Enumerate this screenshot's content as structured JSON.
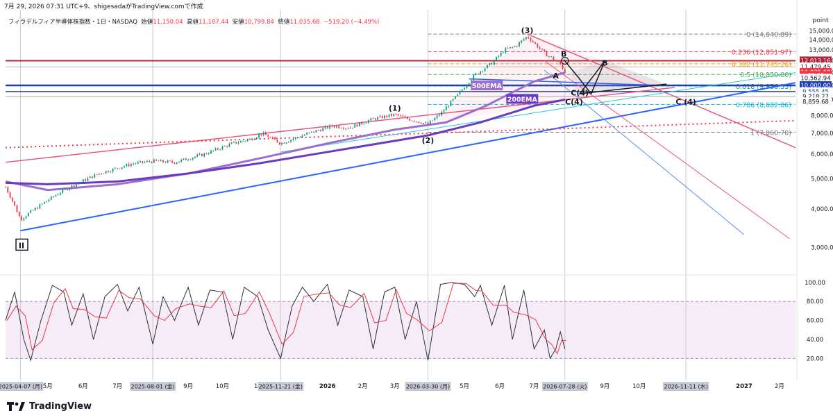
{
  "header": {
    "timestamp_line": "7月 29, 2026 07:31 UTC+9、shigesadaがTradingView.comで作成",
    "symbol": "フィラデルフィア半導体株指数・1日・NASDAQ",
    "open_label": "始値",
    "open": "11,150.04",
    "high_label": "高値",
    "high": "11,187.44",
    "low_label": "安値",
    "low": "10,799.84",
    "close_label": "終値",
    "close": "11,035.68",
    "change": "−519.20 (−4.49%)"
  },
  "brand": "TradingView",
  "colors": {
    "up": "#089981",
    "down": "#f23645",
    "ema500": "#9c6fcf",
    "ema200": "#6a3bc2",
    "trend_blue": "#2962ff",
    "pink": "#e8577f",
    "fib_dash": "#f23645",
    "teal": "#26c6da"
  },
  "chart_data": [
    {
      "type": "candlestick",
      "title": "",
      "y_axis_label": "point",
      "ylim": [
        2500,
        15500
      ],
      "y_scale": "log",
      "yticks": [
        "15,000.00",
        "14,000.00",
        "13,000.00",
        "12,000.00",
        "11,000.00",
        "10,000.00",
        "9,000.00",
        "8,000.00",
        "7,000.00",
        "6,000.00",
        "5,000.00",
        "4,000.00",
        "3,000.00"
      ],
      "x_tick_labels": [
        {
          "label": "5月",
          "date": "2025-05-01"
        },
        {
          "label": "6月",
          "date": "2025-06-01"
        },
        {
          "label": "7月",
          "date": "2025-07-01"
        },
        {
          "label": "9月",
          "date": "2025-09-01"
        },
        {
          "label": "10月",
          "date": "2025-10-01"
        },
        {
          "label": "11",
          "date": "2025-11-01"
        },
        {
          "label": "2026",
          "date": "2026-01-01"
        },
        {
          "label": "2月",
          "date": "2026-02-01"
        },
        {
          "label": "3月",
          "date": "2026-03-01"
        },
        {
          "label": "5月",
          "date": "2026-05-01"
        },
        {
          "label": "6月",
          "date": "2026-06-01"
        },
        {
          "label": "7月",
          "date": "2026-07-01"
        },
        {
          "label": "9月",
          "date": "2026-09-01"
        },
        {
          "label": "10月",
          "date": "2026-10-01"
        },
        {
          "label": "2027",
          "date": "2027-01-01"
        },
        {
          "label": "2月",
          "date": "2027-02-01"
        }
      ],
      "date_markers": [
        {
          "label": "2025-04-07 (月)",
          "date": "2025-04-07"
        },
        {
          "label": "2025-08-01 (金)",
          "date": "2025-08-01"
        },
        {
          "label": "2025-11-21 (金)",
          "date": "2025-11-21"
        },
        {
          "label": "2026-03-30 (月)",
          "date": "2026-03-30"
        },
        {
          "label": "2026-07-28 (火)",
          "date": "2026-07-28"
        },
        {
          "label": "2026-11-11 (水)",
          "date": "2026-11-11"
        }
      ],
      "price_path": [
        [
          "2025-03-25",
          4700
        ],
        [
          "2025-04-07",
          3700
        ],
        [
          "2025-04-20",
          4000
        ],
        [
          "2025-05-15",
          4600
        ],
        [
          "2025-06-15",
          5200
        ],
        [
          "2025-07-15",
          5600
        ],
        [
          "2025-08-01",
          5700
        ],
        [
          "2025-08-20",
          5650
        ],
        [
          "2025-09-15",
          6000
        ],
        [
          "2025-10-10",
          6500
        ],
        [
          "2025-10-25",
          6700
        ],
        [
          "2025-11-05",
          7000
        ],
        [
          "2025-11-21",
          6500
        ],
        [
          "2025-12-10",
          6900
        ],
        [
          "2026-01-05",
          7400
        ],
        [
          "2026-01-20",
          7300
        ],
        [
          "2026-02-10",
          7800
        ],
        [
          "2026-03-01",
          8050
        ],
        [
          "2026-03-15",
          7750
        ],
        [
          "2026-03-30",
          7500
        ],
        [
          "2026-04-10",
          8100
        ],
        [
          "2026-04-25",
          9300
        ],
        [
          "2026-05-10",
          10800
        ],
        [
          "2026-05-25",
          11800
        ],
        [
          "2026-06-05",
          13000
        ],
        [
          "2026-06-15",
          13400
        ],
        [
          "2026-06-25",
          14400
        ],
        [
          "2026-07-01",
          13700
        ],
        [
          "2026-07-10",
          12700
        ],
        [
          "2026-07-20",
          12000
        ],
        [
          "2026-07-24",
          11700
        ],
        [
          "2026-07-28",
          11035.68
        ]
      ],
      "ema500_path": [
        [
          "2025-03-25",
          4900
        ],
        [
          "2025-05-01",
          4600
        ],
        [
          "2025-07-01",
          4800
        ],
        [
          "2025-09-01",
          5200
        ],
        [
          "2025-11-01",
          5800
        ],
        [
          "2026-01-01",
          6500
        ],
        [
          "2026-03-01",
          7200
        ],
        [
          "2026-04-15",
          7600
        ],
        [
          "2026-05-20",
          8600
        ],
        [
          "2026-07-01",
          10300
        ],
        [
          "2026-07-28",
          11000
        ]
      ],
      "ema200_path": [
        [
          "2025-03-25",
          4850
        ],
        [
          "2025-05-01",
          4800
        ],
        [
          "2025-07-01",
          4900
        ],
        [
          "2025-09-01",
          5200
        ],
        [
          "2025-11-01",
          5600
        ],
        [
          "2026-01-01",
          6100
        ],
        [
          "2026-03-30",
          6900
        ],
        [
          "2026-05-15",
          7600
        ],
        [
          "2026-07-01",
          8600
        ],
        [
          "2026-07-28",
          9000
        ]
      ],
      "fib_levels": [
        {
          "ratio": "0",
          "price": 14640.89,
          "label": "0 (14,640.89)",
          "color": "#787b86"
        },
        {
          "ratio": "0.236",
          "price": 12851.97,
          "label": "0.236 (12,851.97)",
          "color": "#f23645"
        },
        {
          "ratio": "0.382",
          "price": 11745.26,
          "label": "0.382 (11,745.26)",
          "color": "#ff9800"
        },
        {
          "ratio": "0.5",
          "price": 10850.8,
          "label": "0.5 (10,850.80)",
          "color": "#4caf50"
        },
        {
          "ratio": "0.618",
          "price": 9956.33,
          "label": "0.618 (9,956.33)",
          "color": "#089981"
        },
        {
          "ratio": "0.786",
          "price": 8682.86,
          "label": "0.786 (8,682.86)",
          "color": "#00bcd4"
        },
        {
          "ratio": "1",
          "price": 7060.7,
          "label": "1 (7,060.70)",
          "color": "#787b86"
        }
      ],
      "price_badges": [
        {
          "text": "12,112.45",
          "bg": "#ffffff",
          "fg": "#131722",
          "price": 12112.45
        },
        {
          "text": "12,013.16",
          "bg": "#b2233b",
          "fg": "#ffffff",
          "price": 12013.16
        },
        {
          "text": "11,479.45",
          "bg": "#ffffff",
          "fg": "#131722",
          "price": 11479.45
        },
        {
          "text": "11,045.74",
          "bg": "#ffffff",
          "fg": "#131722",
          "price": 11045.74
        },
        {
          "text": "11,035.68",
          "bg": "#f23645",
          "fg": "#ffffff",
          "price": 11035.68
        },
        {
          "text": "43:49",
          "bg": "#f23645",
          "fg": "#ffffff",
          "price": 10770
        },
        {
          "text": "10,562.94",
          "bg": "#ffffff",
          "fg": "#131722",
          "price": 10562.94
        },
        {
          "text": "10,000.00",
          "bg": "#1e40af",
          "fg": "#ffffff",
          "price": 10000
        },
        {
          "text": "9,555.45",
          "bg": "#ffffff",
          "fg": "#1e40af",
          "price": 9555.45
        },
        {
          "text": "9,218.27",
          "bg": "#ffffff",
          "fg": "#131722",
          "price": 9218.27
        },
        {
          "text": "8,859.68",
          "bg": "#ffffff",
          "fg": "#131722",
          "price": 8859.68
        }
      ],
      "wave_labels": [
        {
          "text": "II",
          "date": "2025-04-08",
          "price": 3050,
          "boxed": true
        },
        {
          "text": "(1)",
          "date": "2026-03-01",
          "price": 8450
        },
        {
          "text": "(2)",
          "date": "2026-03-30",
          "price": 6650
        },
        {
          "text": "(3)",
          "date": "2026-06-25",
          "price": 15050
        },
        {
          "text": "B",
          "date": "2026-07-27",
          "price": 12650
        },
        {
          "text": "A",
          "date": "2026-07-20",
          "price": 10750
        },
        {
          "text": "C(4)",
          "date": "2026-08-10",
          "price": 9480
        },
        {
          "text": "B",
          "date": "2026-09-01",
          "price": 11820
        },
        {
          "text": "C(4)",
          "date": "2026-08-05",
          "price": 8850
        },
        {
          "text": "C (4)",
          "date": "2026-11-11",
          "price": 8850
        }
      ],
      "ema_labels": [
        {
          "text": "500EMA",
          "date": "2026-05-20",
          "price": 10000,
          "bg": "#9c6fcf"
        },
        {
          "text": "200EMA",
          "date": "2026-06-20",
          "price": 9050,
          "bg": "#6a3bc2"
        }
      ],
      "horizontal_lines": [
        {
          "price": 12013.16,
          "color": "#b2233b",
          "width": 2
        },
        {
          "price": 10000,
          "color": "#1e40af",
          "width": 2.5
        },
        {
          "price": 9555.45,
          "color": "#1e40af",
          "width": 1.5
        },
        {
          "price": 11479.45,
          "color": "#9e9e9e",
          "width": 0.8
        },
        {
          "price": 9218.27,
          "color": "#9e9e9e",
          "width": 0.8
        }
      ],
      "trendlines": [
        {
          "from": [
            "2025-04-07",
            3400
          ],
          "to": [
            "2027-02-15",
            10200
          ],
          "color": "#2962ff",
          "width": 2
        },
        {
          "from": [
            "2025-03-25",
            5650
          ],
          "to": [
            "2026-11-01",
            9850
          ],
          "color": "#e8577f",
          "width": 1.5
        },
        {
          "from": [
            "2025-03-25",
            6300
          ],
          "to": [
            "2027-02-15",
            7700
          ],
          "color": "#f23645",
          "width": 2,
          "dotted": true
        },
        {
          "from": [
            "2025-11-21",
            6100
          ],
          "to": [
            "2027-02-15",
            11000
          ],
          "color": "#26c6da",
          "width": 1
        },
        {
          "from": [
            "2026-06-25",
            14640
          ],
          "to": [
            "2027-02-15",
            6300
          ],
          "color": "#e8577f",
          "width": 1.5
        },
        {
          "from": [
            "2026-07-10",
            12013
          ],
          "to": [
            "2027-02-10",
            3200
          ],
          "color": "#e8577f",
          "width": 1
        },
        {
          "from": [
            "2026-07-10",
            11200
          ],
          "to": [
            "2027-01-01",
            3300
          ],
          "color": "#5b8def",
          "width": 1
        },
        {
          "from": [
            "2026-05-05",
            10500
          ],
          "to": [
            "2026-10-20",
            10000
          ],
          "color": "#2962ff",
          "width": 1.5
        }
      ]
    },
    {
      "type": "line",
      "title": "",
      "name": "stochastic",
      "ylim": [
        10,
        105
      ],
      "yticks": [
        "100.00",
        "80.00",
        "60.00",
        "40.00",
        "20.00"
      ],
      "band": [
        20,
        80
      ],
      "k_path": [
        [
          "2025-03-25",
          60
        ],
        [
          "2025-04-02",
          90
        ],
        [
          "2025-04-10",
          40
        ],
        [
          "2025-04-16",
          18
        ],
        [
          "2025-04-25",
          60
        ],
        [
          "2025-05-05",
          97
        ],
        [
          "2025-05-15",
          90
        ],
        [
          "2025-05-22",
          55
        ],
        [
          "2025-06-01",
          88
        ],
        [
          "2025-06-10",
          40
        ],
        [
          "2025-06-20",
          85
        ],
        [
          "2025-07-01",
          98
        ],
        [
          "2025-07-10",
          70
        ],
        [
          "2025-07-20",
          95
        ],
        [
          "2025-08-01",
          35
        ],
        [
          "2025-08-10",
          85
        ],
        [
          "2025-08-20",
          60
        ],
        [
          "2025-09-01",
          95
        ],
        [
          "2025-09-10",
          55
        ],
        [
          "2025-09-20",
          92
        ],
        [
          "2025-10-01",
          90
        ],
        [
          "2025-10-10",
          40
        ],
        [
          "2025-10-20",
          95
        ],
        [
          "2025-11-01",
          85
        ],
        [
          "2025-11-10",
          50
        ],
        [
          "2025-11-21",
          20
        ],
        [
          "2025-12-01",
          75
        ],
        [
          "2025-12-10",
          95
        ],
        [
          "2025-12-20",
          80
        ],
        [
          "2026-01-01",
          98
        ],
        [
          "2026-01-10",
          55
        ],
        [
          "2026-01-20",
          92
        ],
        [
          "2026-02-01",
          85
        ],
        [
          "2026-02-10",
          30
        ],
        [
          "2026-02-20",
          90
        ],
        [
          "2026-03-01",
          95
        ],
        [
          "2026-03-10",
          40
        ],
        [
          "2026-03-20",
          80
        ],
        [
          "2026-03-30",
          18
        ],
        [
          "2026-04-10",
          98
        ],
        [
          "2026-04-20",
          100
        ],
        [
          "2026-05-01",
          98
        ],
        [
          "2026-05-10",
          85
        ],
        [
          "2026-05-15",
          97
        ],
        [
          "2026-05-25",
          55
        ],
        [
          "2026-06-05",
          97
        ],
        [
          "2026-06-12",
          40
        ],
        [
          "2026-06-22",
          92
        ],
        [
          "2026-07-01",
          30
        ],
        [
          "2026-07-10",
          50
        ],
        [
          "2026-07-15",
          20
        ],
        [
          "2026-07-20",
          30
        ],
        [
          "2026-07-24",
          48
        ],
        [
          "2026-07-28",
          30
        ]
      ]
    }
  ]
}
